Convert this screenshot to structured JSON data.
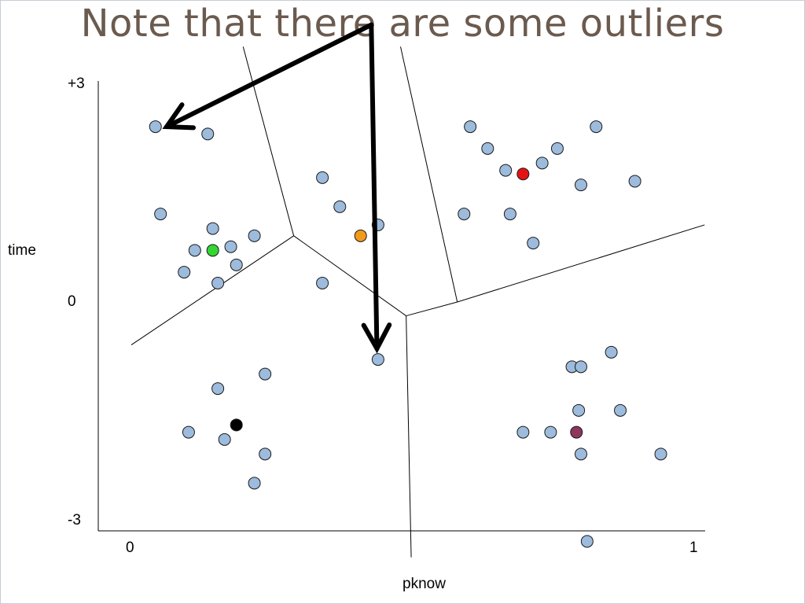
{
  "slide": {
    "title": "Note that there are some outliers"
  },
  "chart_data": {
    "type": "scatter",
    "title": "Note that there are some outliers",
    "xlabel": "pknow",
    "ylabel": "time",
    "xlim": [
      0,
      1
    ],
    "ylim": [
      -3,
      3
    ],
    "x_tick_labels": [
      "0",
      "1"
    ],
    "y_tick_labels": [
      "+3",
      "0",
      "-3"
    ],
    "grid": false,
    "point_color": "#9dbbdc",
    "series": [
      {
        "role": "points",
        "color": "#9dbbdc",
        "points": [
          [
            0.043,
            2.41
          ],
          [
            0.136,
            2.31
          ],
          [
            0.052,
            1.21
          ],
          [
            0.145,
            1.01
          ],
          [
            0.219,
            0.91
          ],
          [
            0.113,
            0.71
          ],
          [
            0.177,
            0.76
          ],
          [
            0.094,
            0.41
          ],
          [
            0.187,
            0.51
          ],
          [
            0.154,
            0.26
          ],
          [
            0.34,
            1.71
          ],
          [
            0.371,
            1.31
          ],
          [
            0.34,
            0.26
          ],
          [
            0.439,
            1.06
          ],
          [
            0.603,
            2.41
          ],
          [
            0.634,
            2.11
          ],
          [
            0.666,
            1.81
          ],
          [
            0.731,
            1.91
          ],
          [
            0.758,
            2.11
          ],
          [
            0.827,
            2.41
          ],
          [
            0.592,
            1.21
          ],
          [
            0.674,
            1.21
          ],
          [
            0.8,
            1.61
          ],
          [
            0.896,
            1.66
          ],
          [
            0.715,
            0.81
          ],
          [
            0.439,
            -0.79
          ],
          [
            0.154,
            -1.19
          ],
          [
            0.238,
            -0.99
          ],
          [
            0.102,
            -1.79
          ],
          [
            0.166,
            -1.89
          ],
          [
            0.238,
            -2.09
          ],
          [
            0.219,
            -2.49
          ],
          [
            0.784,
            -0.89
          ],
          [
            0.8,
            -0.89
          ],
          [
            0.854,
            -0.69
          ],
          [
            0.796,
            -1.49
          ],
          [
            0.87,
            -1.49
          ],
          [
            0.697,
            -1.79
          ],
          [
            0.746,
            -1.79
          ],
          [
            0.8,
            -2.09
          ],
          [
            0.942,
            -2.09
          ],
          [
            0.811,
            -3.29
          ]
        ]
      },
      {
        "role": "centroids",
        "points": [
          {
            "x": 0.145,
            "y": 0.71,
            "color": "#33d633"
          },
          {
            "x": 0.408,
            "y": 0.91,
            "color": "#f29a1c"
          },
          {
            "x": 0.697,
            "y": 1.76,
            "color": "#e41414"
          },
          {
            "x": 0.187,
            "y": -1.69,
            "color": "#000000"
          },
          {
            "x": 0.792,
            "y": -1.79,
            "color": "#8e3560"
          }
        ]
      }
    ],
    "boundaries": [
      [
        [
          0.199,
          3.51
        ],
        [
          0.289,
          0.91
        ]
      ],
      [
        [
          0.479,
          3.51
        ],
        [
          0.58,
          0.0
        ]
      ],
      [
        [
          0.289,
          0.91
        ],
        [
          0.489,
          -0.19
        ]
      ],
      [
        [
          0.489,
          -0.19
        ],
        [
          0.58,
          0.0
        ]
      ],
      [
        [
          0.0,
          -0.59
        ],
        [
          0.289,
          0.91
        ]
      ],
      [
        [
          0.489,
          -0.19
        ],
        [
          0.498,
          -3.51
        ]
      ],
      [
        [
          0.58,
          0.0
        ],
        [
          1.02,
          1.06
        ]
      ]
    ],
    "annotation_arrows": [
      {
        "from": [
          0.427,
          3.81
        ],
        "to": [
          0.063,
          2.41
        ]
      },
      {
        "from": [
          0.427,
          3.81
        ],
        "to": [
          0.437,
          -0.64
        ]
      }
    ]
  }
}
